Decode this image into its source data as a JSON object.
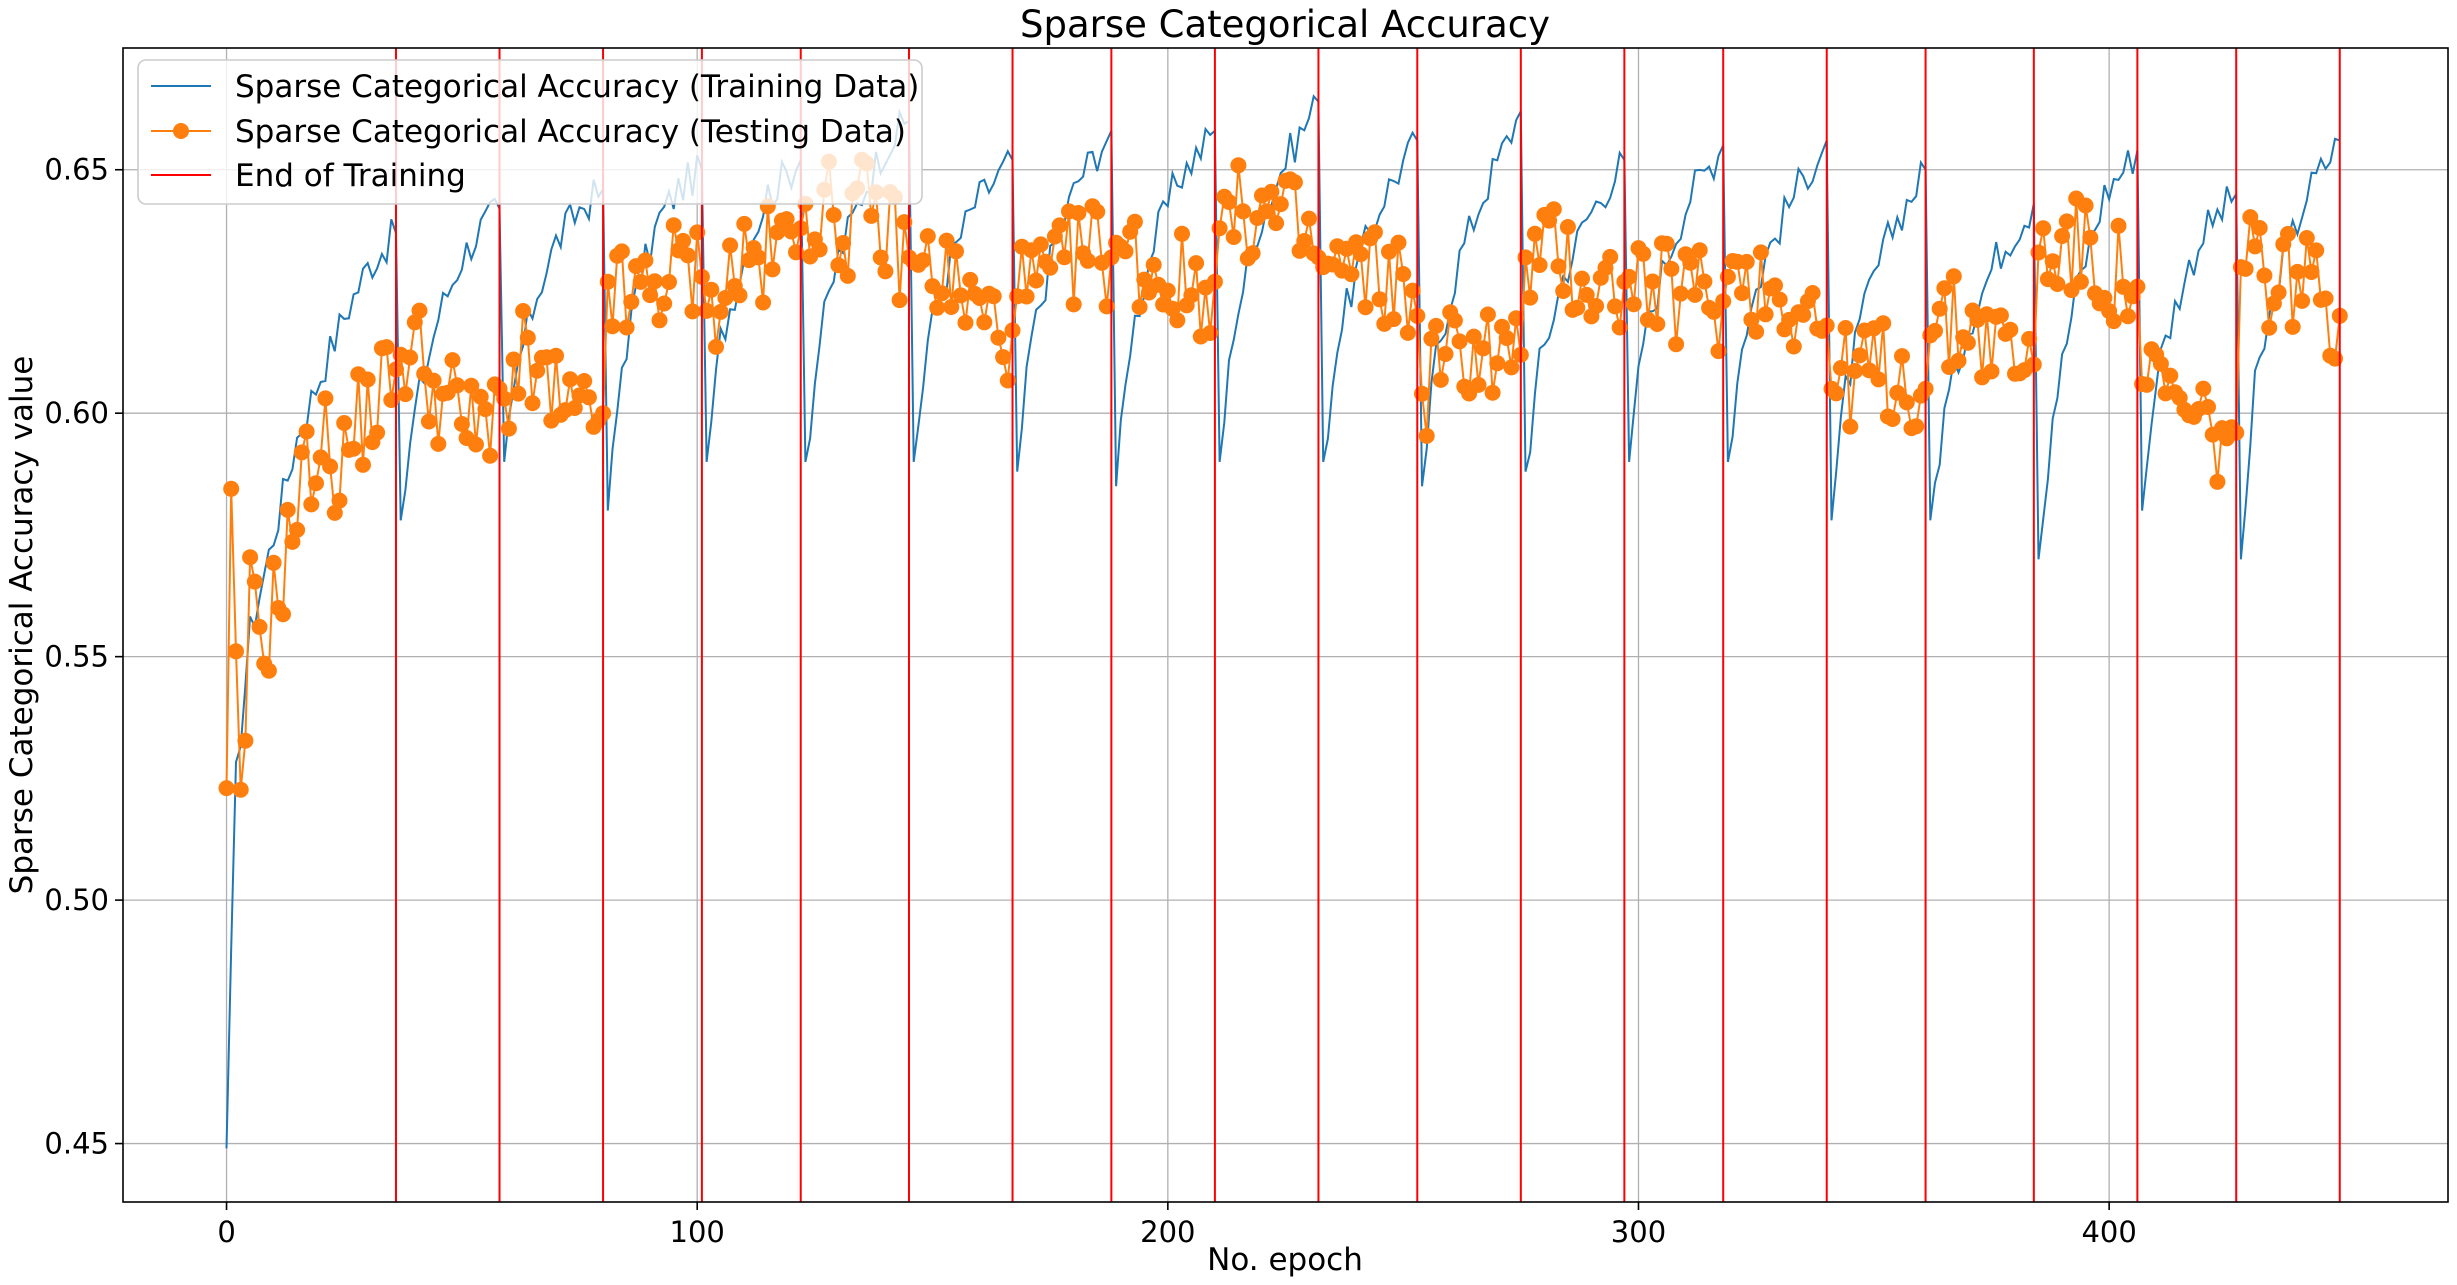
{
  "chart_data": {
    "type": "line",
    "title": "Sparse Categorical Accuracy",
    "xlabel": "No. epoch",
    "ylabel": "Sparse Categorical Accuracy value",
    "xlim": [
      -22,
      472
    ],
    "ylim": [
      0.438,
      0.675
    ],
    "x_ticks": [
      0,
      100,
      200,
      300,
      400
    ],
    "x_tick_labels": [
      "0",
      "100",
      "200",
      "300",
      "400"
    ],
    "y_ticks": [
      0.45,
      0.5,
      0.55,
      0.6,
      0.65
    ],
    "y_tick_labels": [
      "0.45",
      "0.50",
      "0.55",
      "0.60",
      "0.65"
    ],
    "grid": true,
    "legend_position": "top-left",
    "end_of_training_epochs": [
      36,
      58,
      80,
      101,
      122,
      145,
      167,
      188,
      210,
      232,
      253,
      275,
      297,
      318,
      340,
      361,
      384,
      406,
      427,
      449
    ],
    "series": [
      {
        "name": "Sparse Categorical Accuracy (Training Data)",
        "color": "#1f77b4",
        "marker": "none",
        "knots": [
          [
            [
              0,
              0.449
            ],
            [
              2,
              0.525
            ],
            [
              5,
              0.555
            ],
            [
              10,
              0.575
            ],
            [
              15,
              0.595
            ],
            [
              20,
              0.608
            ],
            [
              25,
              0.62
            ],
            [
              30,
              0.63
            ],
            [
              36,
              0.637
            ]
          ],
          [
            [
              37,
              0.578
            ],
            [
              40,
              0.6
            ],
            [
              45,
              0.62
            ],
            [
              50,
              0.632
            ],
            [
              54,
              0.638
            ],
            [
              58,
              0.642
            ]
          ],
          [
            [
              59,
              0.59
            ],
            [
              62,
              0.61
            ],
            [
              66,
              0.625
            ],
            [
              70,
              0.635
            ],
            [
              75,
              0.642
            ],
            [
              80,
              0.646
            ]
          ],
          [
            [
              81,
              0.58
            ],
            [
              84,
              0.61
            ],
            [
              88,
              0.628
            ],
            [
              92,
              0.64
            ],
            [
              96,
              0.646
            ],
            [
              101,
              0.65
            ]
          ],
          [
            [
              102,
              0.59
            ],
            [
              105,
              0.615
            ],
            [
              110,
              0.632
            ],
            [
              115,
              0.645
            ],
            [
              122,
              0.652
            ]
          ],
          [
            [
              123,
              0.59
            ],
            [
              126,
              0.615
            ],
            [
              130,
              0.632
            ],
            [
              135,
              0.645
            ],
            [
              140,
              0.655
            ],
            [
              145,
              0.66
            ]
          ],
          [
            [
              146,
              0.59
            ],
            [
              149,
              0.615
            ],
            [
              154,
              0.632
            ],
            [
              159,
              0.643
            ],
            [
              167,
              0.652
            ]
          ],
          [
            [
              168,
              0.588
            ],
            [
              171,
              0.615
            ],
            [
              176,
              0.635
            ],
            [
              181,
              0.648
            ],
            [
              188,
              0.658
            ]
          ],
          [
            [
              189,
              0.585
            ],
            [
              192,
              0.615
            ],
            [
              197,
              0.635
            ],
            [
              202,
              0.648
            ],
            [
              210,
              0.658
            ]
          ],
          [
            [
              211,
              0.59
            ],
            [
              214,
              0.618
            ],
            [
              219,
              0.638
            ],
            [
              225,
              0.652
            ],
            [
              232,
              0.664
            ]
          ],
          [
            [
              233,
              0.59
            ],
            [
              236,
              0.615
            ],
            [
              241,
              0.632
            ],
            [
              246,
              0.645
            ],
            [
              253,
              0.656
            ]
          ],
          [
            [
              254,
              0.585
            ],
            [
              257,
              0.612
            ],
            [
              262,
              0.632
            ],
            [
              267,
              0.645
            ],
            [
              275,
              0.662
            ]
          ],
          [
            [
              276,
              0.588
            ],
            [
              279,
              0.61
            ],
            [
              284,
              0.628
            ],
            [
              289,
              0.64
            ],
            [
              297,
              0.652
            ]
          ],
          [
            [
              298,
              0.59
            ],
            [
              301,
              0.615
            ],
            [
              306,
              0.632
            ],
            [
              311,
              0.645
            ],
            [
              318,
              0.655
            ]
          ],
          [
            [
              319,
              0.59
            ],
            [
              322,
              0.615
            ],
            [
              327,
              0.632
            ],
            [
              333,
              0.645
            ],
            [
              340,
              0.656
            ]
          ],
          [
            [
              341,
              0.578
            ],
            [
              344,
              0.605
            ],
            [
              349,
              0.625
            ],
            [
              354,
              0.638
            ],
            [
              361,
              0.65
            ]
          ],
          [
            [
              362,
              0.578
            ],
            [
              365,
              0.6
            ],
            [
              370,
              0.618
            ],
            [
              376,
              0.632
            ],
            [
              384,
              0.643
            ]
          ],
          [
            [
              385,
              0.57
            ],
            [
              388,
              0.6
            ],
            [
              393,
              0.625
            ],
            [
              399,
              0.645
            ],
            [
              406,
              0.654
            ]
          ],
          [
            [
              407,
              0.58
            ],
            [
              410,
              0.608
            ],
            [
              415,
              0.625
            ],
            [
              420,
              0.637
            ],
            [
              427,
              0.645
            ]
          ],
          [
            [
              428,
              0.57
            ],
            [
              431,
              0.605
            ],
            [
              436,
              0.628
            ],
            [
              442,
              0.645
            ],
            [
              449,
              0.656
            ]
          ]
        ]
      },
      {
        "name": "Sparse Categorical Accuracy (Testing Data)",
        "color": "#ff7f0e",
        "marker": "circle",
        "knots": [
          [
            [
              0,
              0.523
            ],
            [
              1,
              0.577
            ],
            [
              3,
              0.513
            ],
            [
              5,
              0.561
            ],
            [
              8,
              0.553
            ],
            [
              12,
              0.568
            ],
            [
              16,
              0.585
            ],
            [
              20,
              0.595
            ],
            [
              24,
              0.588
            ],
            [
              28,
              0.598
            ],
            [
              32,
              0.603
            ],
            [
              36,
              0.609
            ]
          ],
          [
            [
              37,
              0.612
            ],
            [
              41,
              0.613
            ],
            [
              45,
              0.603
            ],
            [
              49,
              0.601
            ],
            [
              53,
              0.595
            ],
            [
              58,
              0.605
            ]
          ],
          [
            [
              59,
              0.603
            ],
            [
              63,
              0.61
            ],
            [
              67,
              0.606
            ],
            [
              71,
              0.6
            ],
            [
              75,
              0.597
            ],
            [
              80,
              0.6
            ]
          ],
          [
            [
              81,
              0.627
            ],
            [
              85,
              0.622
            ],
            [
              89,
              0.625
            ],
            [
              93,
              0.628
            ],
            [
              97,
              0.63
            ],
            [
              101,
              0.628
            ]
          ],
          [
            [
              102,
              0.621
            ],
            [
              106,
              0.627
            ],
            [
              110,
              0.632
            ],
            [
              114,
              0.631
            ],
            [
              118,
              0.634
            ],
            [
              122,
              0.638
            ]
          ],
          [
            [
              123,
              0.643
            ],
            [
              127,
              0.642
            ],
            [
              131,
              0.638
            ],
            [
              135,
              0.642
            ],
            [
              140,
              0.637
            ],
            [
              145,
              0.632
            ]
          ],
          [
            [
              146,
              0.631
            ],
            [
              150,
              0.63
            ],
            [
              154,
              0.627
            ],
            [
              158,
              0.622
            ],
            [
              162,
              0.619
            ],
            [
              167,
              0.617
            ]
          ],
          [
            [
              168,
              0.624
            ],
            [
              172,
              0.626
            ],
            [
              176,
              0.627
            ],
            [
              180,
              0.632
            ],
            [
              184,
              0.634
            ],
            [
              188,
              0.632
            ]
          ],
          [
            [
              189,
              0.635
            ],
            [
              193,
              0.632
            ],
            [
              197,
              0.629
            ],
            [
              201,
              0.627
            ],
            [
              205,
              0.626
            ],
            [
              210,
              0.627
            ]
          ],
          [
            [
              211,
              0.638
            ],
            [
              215,
              0.64
            ],
            [
              219,
              0.642
            ],
            [
              223,
              0.64
            ],
            [
              227,
              0.638
            ],
            [
              232,
              0.632
            ]
          ],
          [
            [
              233,
              0.63
            ],
            [
              237,
              0.629
            ],
            [
              241,
              0.628
            ],
            [
              245,
              0.628
            ],
            [
              249,
              0.627
            ],
            [
              253,
              0.62
            ]
          ],
          [
            [
              254,
              0.604
            ],
            [
              258,
              0.612
            ],
            [
              262,
              0.612
            ],
            [
              266,
              0.614
            ],
            [
              270,
              0.611
            ],
            [
              275,
              0.612
            ]
          ],
          [
            [
              276,
              0.632
            ],
            [
              280,
              0.632
            ],
            [
              284,
              0.632
            ],
            [
              288,
              0.628
            ],
            [
              292,
              0.625
            ],
            [
              297,
              0.627
            ]
          ],
          [
            [
              298,
              0.628
            ],
            [
              302,
              0.626
            ],
            [
              306,
              0.624
            ],
            [
              310,
              0.625
            ],
            [
              314,
              0.624
            ],
            [
              318,
              0.623
            ]
          ],
          [
            [
              319,
              0.628
            ],
            [
              323,
              0.628
            ],
            [
              327,
              0.626
            ],
            [
              331,
              0.625
            ],
            [
              335,
              0.622
            ],
            [
              340,
              0.618
            ]
          ],
          [
            [
              341,
              0.605
            ],
            [
              345,
              0.608
            ],
            [
              349,
              0.609
            ],
            [
              353,
              0.608
            ],
            [
              357,
              0.607
            ],
            [
              361,
              0.605
            ]
          ],
          [
            [
              362,
              0.616
            ],
            [
              366,
              0.617
            ],
            [
              370,
              0.619
            ],
            [
              374,
              0.616
            ],
            [
              378,
              0.613
            ],
            [
              384,
              0.61
            ]
          ],
          [
            [
              385,
              0.633
            ],
            [
              389,
              0.634
            ],
            [
              393,
              0.634
            ],
            [
              397,
              0.631
            ],
            [
              401,
              0.628
            ],
            [
              406,
              0.626
            ]
          ],
          [
            [
              407,
              0.606
            ],
            [
              411,
              0.604
            ],
            [
              415,
              0.6
            ],
            [
              419,
              0.597
            ],
            [
              423,
              0.595
            ],
            [
              427,
              0.596
            ]
          ],
          [
            [
              428,
              0.63
            ],
            [
              432,
              0.629
            ],
            [
              436,
              0.628
            ],
            [
              440,
              0.628
            ],
            [
              444,
              0.625
            ],
            [
              449,
              0.62
            ]
          ]
        ]
      },
      {
        "name": "End of Training",
        "color": "#ff0000",
        "marker": "vertical-line"
      }
    ]
  }
}
